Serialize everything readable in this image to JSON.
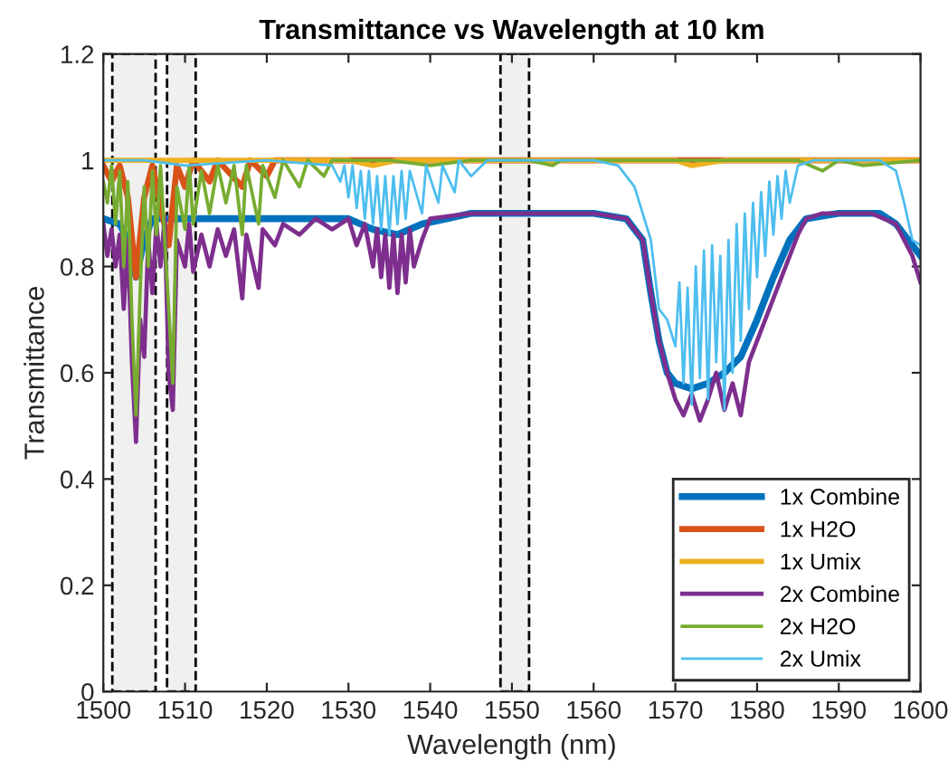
{
  "chart_data": {
    "type": "line",
    "title": "Transmittance vs Wavelength at 10 km",
    "xlabel": "Wavelength (nm)",
    "ylabel": "Transmittance",
    "xlim": [
      1500,
      1600
    ],
    "xticks": [
      1500,
      1510,
      1520,
      1530,
      1540,
      1550,
      1560,
      1570,
      1580,
      1590,
      1600
    ],
    "ylim": [
      0,
      1.2
    ],
    "yticks": [
      0,
      0.2,
      0.4,
      0.6,
      0.8,
      1,
      1.2
    ],
    "bands": [
      {
        "axis": "x",
        "from": 1501.1,
        "to": 1506.4,
        "color": "#000000"
      },
      {
        "axis": "x",
        "from": 1507.8,
        "to": 1511.3,
        "color": "#000000"
      },
      {
        "axis": "x",
        "from": 1548.6,
        "to": 1552.1,
        "color": "#000000"
      }
    ],
    "grid": false,
    "legend": "bottom right",
    "line_style": "solid",
    "marker": "none",
    "series": [
      {
        "name": "1x Combine",
        "color": "#0072bd",
        "x": [
          1500,
          1502,
          1503,
          1504,
          1505,
          1506,
          1510,
          1515,
          1520,
          1525,
          1530,
          1533,
          1536,
          1539,
          1542,
          1545,
          1550,
          1560,
          1564,
          1566,
          1567,
          1568,
          1569,
          1570,
          1572,
          1574,
          1576,
          1578,
          1580,
          1582,
          1584,
          1586,
          1590,
          1595,
          1597,
          1598,
          1600
        ],
        "values": [
          0.89,
          0.88,
          0.85,
          0.78,
          0.85,
          0.89,
          0.89,
          0.89,
          0.89,
          0.89,
          0.89,
          0.87,
          0.86,
          0.88,
          0.89,
          0.9,
          0.9,
          0.9,
          0.89,
          0.85,
          0.75,
          0.66,
          0.6,
          0.58,
          0.57,
          0.58,
          0.6,
          0.63,
          0.7,
          0.78,
          0.85,
          0.89,
          0.9,
          0.9,
          0.88,
          0.86,
          0.82
        ]
      },
      {
        "name": "1x H2O",
        "color": "#d95319",
        "x": [
          1500,
          1501,
          1502,
          1503,
          1504,
          1505,
          1506,
          1508,
          1509,
          1510,
          1511,
          1513,
          1514,
          1517,
          1518,
          1520,
          1521,
          1530,
          1600
        ],
        "values": [
          0.99,
          0.96,
          0.99,
          0.93,
          0.78,
          0.93,
          0.99,
          0.84,
          0.99,
          0.95,
          1.0,
          0.96,
          1.0,
          0.95,
          1.0,
          0.97,
          1.0,
          1.0,
          1.0
        ]
      },
      {
        "name": "1x Umix",
        "color": "#edb120",
        "x": [
          1500,
          1530,
          1533,
          1536,
          1570,
          1572,
          1576,
          1600
        ],
        "values": [
          1.0,
          1.0,
          0.99,
          1.0,
          1.0,
          0.99,
          1.0,
          1.0
        ]
      },
      {
        "name": "2x Combine",
        "color": "#7e2f8e",
        "x": [
          1500,
          1500.5,
          1501,
          1501.5,
          1502,
          1502.5,
          1503,
          1503.5,
          1504,
          1504.5,
          1505,
          1505.5,
          1506,
          1506.5,
          1507,
          1507.5,
          1508,
          1508.5,
          1509,
          1510,
          1510.5,
          1511,
          1512,
          1513,
          1514,
          1515,
          1516,
          1517,
          1517.5,
          1519,
          1519.5,
          1521,
          1522,
          1524,
          1526,
          1528,
          1530,
          1531,
          1532,
          1533,
          1533.5,
          1534,
          1534.5,
          1535,
          1535.5,
          1536,
          1536.5,
          1537,
          1537.5,
          1538,
          1539,
          1540,
          1545,
          1550,
          1555,
          1560,
          1564,
          1566,
          1567,
          1568,
          1569,
          1570,
          1571,
          1572,
          1573,
          1574,
          1575,
          1576,
          1577,
          1578,
          1579,
          1580,
          1581,
          1582,
          1583,
          1584,
          1585,
          1586,
          1588,
          1590,
          1594,
          1597,
          1598,
          1599,
          1600
        ],
        "values": [
          0.88,
          0.82,
          0.87,
          0.8,
          0.86,
          0.72,
          0.85,
          0.62,
          0.47,
          0.7,
          0.63,
          0.85,
          0.75,
          0.88,
          0.8,
          0.89,
          0.6,
          0.53,
          0.85,
          0.8,
          0.88,
          0.79,
          0.86,
          0.8,
          0.87,
          0.82,
          0.87,
          0.74,
          0.86,
          0.76,
          0.87,
          0.84,
          0.88,
          0.86,
          0.89,
          0.87,
          0.89,
          0.84,
          0.88,
          0.8,
          0.87,
          0.78,
          0.86,
          0.76,
          0.86,
          0.75,
          0.86,
          0.77,
          0.87,
          0.8,
          0.85,
          0.89,
          0.9,
          0.9,
          0.9,
          0.9,
          0.89,
          0.85,
          0.75,
          0.66,
          0.6,
          0.55,
          0.52,
          0.56,
          0.51,
          0.55,
          0.6,
          0.53,
          0.58,
          0.52,
          0.62,
          0.66,
          0.7,
          0.74,
          0.78,
          0.82,
          0.86,
          0.89,
          0.9,
          0.9,
          0.9,
          0.88,
          0.85,
          0.82,
          0.77
        ]
      },
      {
        "name": "2x H2O",
        "color": "#77ac30",
        "x": [
          1500,
          1500.5,
          1501,
          1501.5,
          1502,
          1502.5,
          1503,
          1503.5,
          1504,
          1504.5,
          1505,
          1505.5,
          1506,
          1506.5,
          1507,
          1508,
          1508.5,
          1509,
          1510,
          1510.5,
          1511,
          1512,
          1513,
          1514,
          1515,
          1516,
          1517,
          1517.5,
          1519,
          1519.5,
          1521,
          1522,
          1524,
          1525,
          1527,
          1528,
          1535,
          1540,
          1545,
          1552,
          1555,
          1556,
          1585,
          1588,
          1590,
          1593,
          1600
        ],
        "values": [
          0.96,
          0.92,
          0.99,
          0.88,
          0.98,
          0.8,
          0.96,
          0.7,
          0.52,
          0.75,
          0.95,
          0.8,
          0.98,
          0.86,
          0.99,
          0.72,
          0.58,
          0.95,
          0.87,
          0.99,
          0.88,
          0.98,
          0.9,
          0.99,
          0.92,
          0.99,
          0.86,
          0.99,
          0.88,
          0.99,
          0.93,
          1.0,
          0.95,
          1.0,
          0.97,
          1.0,
          1.0,
          0.99,
          1.0,
          1.0,
          0.99,
          1.0,
          1.0,
          0.98,
          1.0,
          0.99,
          1.0
        ]
      },
      {
        "name": "2x Umix",
        "color": "#4dbeee",
        "x": [
          1500,
          1505,
          1510,
          1520,
          1528,
          1529,
          1529.5,
          1530,
          1530.5,
          1531,
          1531.5,
          1532,
          1532.5,
          1533,
          1533.5,
          1534,
          1534.5,
          1535,
          1535.5,
          1536,
          1536.5,
          1537,
          1537.5,
          1539,
          1539.5,
          1541,
          1541.5,
          1543,
          1543.5,
          1545,
          1547,
          1560,
          1563,
          1565,
          1567,
          1568,
          1569,
          1570,
          1570.5,
          1571,
          1571.5,
          1572,
          1572.5,
          1573,
          1573.5,
          1574,
          1574.5,
          1575,
          1575.5,
          1576,
          1576.5,
          1577,
          1577.5,
          1578,
          1578.5,
          1579,
          1579.5,
          1580,
          1580.5,
          1581,
          1581.5,
          1582,
          1582.5,
          1583,
          1583.5,
          1584,
          1585,
          1587,
          1595,
          1597,
          1598,
          1599,
          1600
        ],
        "values": [
          1.0,
          1.0,
          0.99,
          1.0,
          0.99,
          0.96,
          0.99,
          0.93,
          0.99,
          0.91,
          0.98,
          0.89,
          0.98,
          0.88,
          0.97,
          0.87,
          0.97,
          0.86,
          0.97,
          0.88,
          0.98,
          0.89,
          0.98,
          0.9,
          0.99,
          0.92,
          0.99,
          0.94,
          1.0,
          0.97,
          1.0,
          1.0,
          0.99,
          0.95,
          0.85,
          0.72,
          0.7,
          0.65,
          0.77,
          0.58,
          0.76,
          0.54,
          0.8,
          0.59,
          0.83,
          0.55,
          0.84,
          0.62,
          0.82,
          0.53,
          0.85,
          0.6,
          0.88,
          0.66,
          0.9,
          0.72,
          0.92,
          0.78,
          0.94,
          0.82,
          0.96,
          0.86,
          0.97,
          0.89,
          0.98,
          0.92,
          0.99,
          1.0,
          1.0,
          0.98,
          0.92,
          0.85,
          0.84
        ]
      }
    ]
  }
}
